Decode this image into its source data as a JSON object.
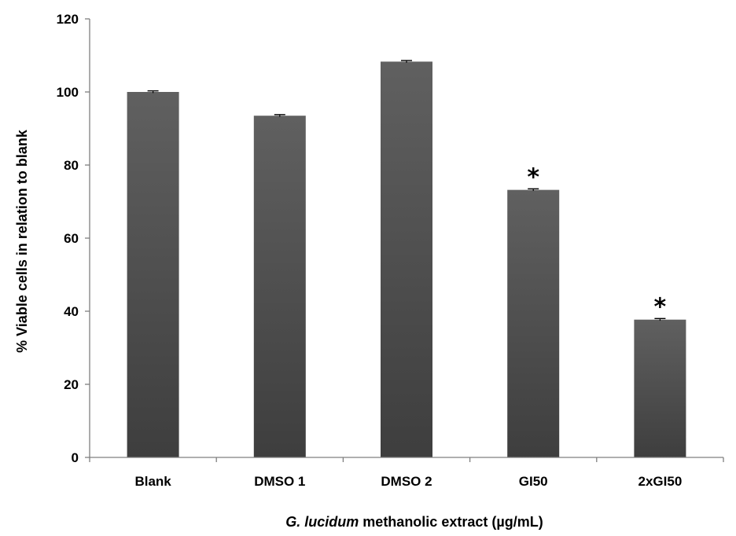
{
  "chart_data": {
    "type": "bar",
    "categories": [
      "Blank",
      "DMSO 1",
      "DMSO 2",
      "GI50",
      "2xGI50"
    ],
    "values": [
      100,
      93.5,
      108.3,
      73.2,
      37.7
    ],
    "errors": [
      0.3,
      0.3,
      0.3,
      0.3,
      0.3
    ],
    "significance": [
      "",
      "",
      "",
      "*",
      "*"
    ],
    "ylim": [
      0,
      120
    ],
    "yticks": [
      0,
      20,
      40,
      60,
      80,
      100,
      120
    ],
    "ylabel": "% Viable cells in relation to blank",
    "xlabel": {
      "italic_part": "G. lucidum",
      "rest": " methanolic extract (µg/mL)"
    },
    "bar_color_top": "#606060",
    "bar_color_bottom": "#3e3e3e",
    "axis_color": "#7f7f7f",
    "grid": false,
    "legend": "none"
  }
}
